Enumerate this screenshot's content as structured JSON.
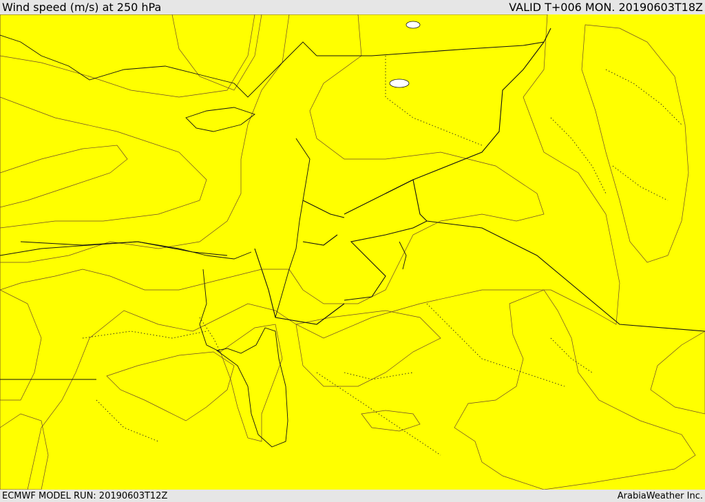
{
  "header": {
    "title": "Wind speed (m/s) at 250 hPa",
    "valid": "VALID T+006 MON. 20190603T18Z"
  },
  "footer": {
    "model_run": "ECMWF MODEL RUN: 20190603T12Z",
    "credit": "ArabiaWeather Inc."
  },
  "colors": {
    "low_speed": "#ffe0aa",
    "band_1": "#ffff00",
    "band_2": "#ffd700",
    "band_3": "#ffaa00",
    "band_4": "#ff8c00",
    "band_5": "#ff6400",
    "jet_core": "#ff4500",
    "sea_missing": "#ffffff"
  }
}
